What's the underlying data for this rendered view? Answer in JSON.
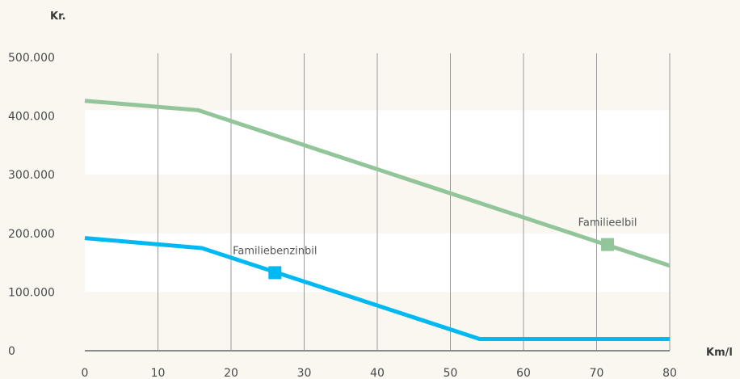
{
  "chart_data": {
    "type": "line",
    "ylabel": "Kr.",
    "xlabel": "Km/l",
    "xlim": [
      0,
      80
    ],
    "ylim": [
      0,
      500000
    ],
    "x_ticks": [
      0,
      10,
      20,
      30,
      40,
      50,
      60,
      70,
      80
    ],
    "x_tick_labels": [
      "0",
      "10",
      "20",
      "30",
      "40",
      "50",
      "60",
      "70",
      "80"
    ],
    "y_ticks": [
      0,
      100000,
      200000,
      300000,
      400000,
      500000
    ],
    "y_tick_labels": [
      "0",
      "100.000",
      "200.000",
      "300.000",
      "400.000",
      "500.000"
    ],
    "y_bands": [
      [
        100000,
        200000
      ],
      [
        300000,
        410000
      ]
    ],
    "grid": "vertical",
    "colors": {
      "background": "#faf6f0",
      "band": "#ffffff",
      "grid": "#9a9a9a",
      "axis": "#8a8a8a"
    },
    "series": [
      {
        "name": "Familieelbil",
        "color": "#93c59b",
        "x": [
          0,
          15.5,
          80
        ],
        "y": [
          426000,
          410000,
          145000
        ],
        "marker": {
          "x": 71.5,
          "y": 181000
        }
      },
      {
        "name": "Familiebenzinbil",
        "color": "#00b9f2",
        "x": [
          0,
          16,
          54,
          80
        ],
        "y": [
          192000,
          175000,
          20000,
          20000
        ],
        "marker": {
          "x": 26,
          "y": 133000
        }
      }
    ]
  }
}
